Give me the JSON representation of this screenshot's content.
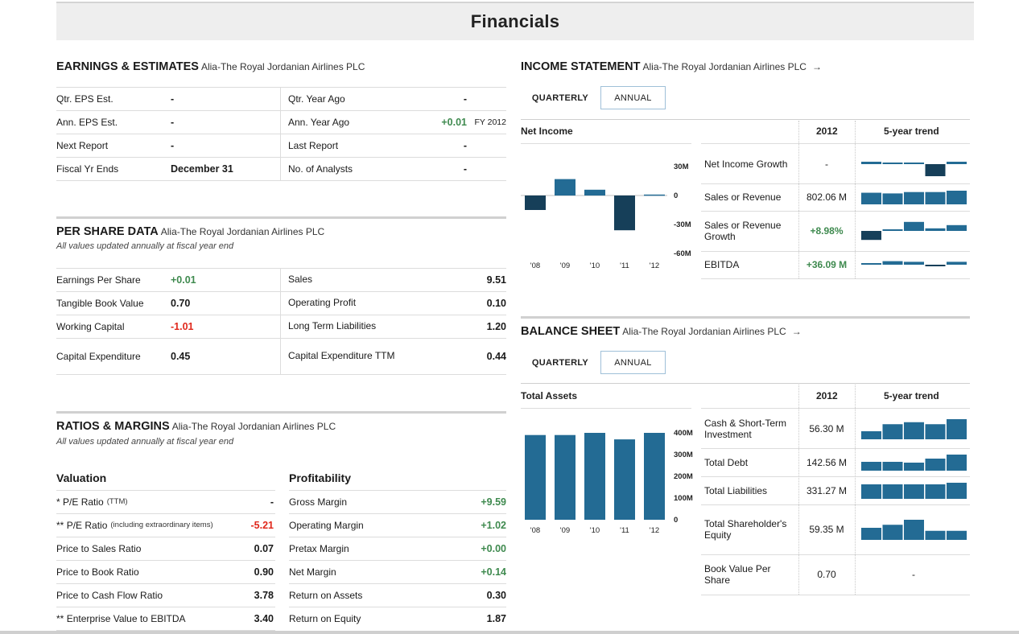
{
  "page_title": "Financials",
  "company": "Alia-The Royal Jordanian Airlines PLC",
  "arrow": "→",
  "earnings": {
    "heading": "EARNINGS & ESTIMATES",
    "left_rows": [
      {
        "label": "Qtr. EPS Est.",
        "value": "-"
      },
      {
        "label": "Ann. EPS Est.",
        "value": "-"
      },
      {
        "label": "Next Report",
        "value": "-"
      },
      {
        "label": "Fiscal Yr Ends",
        "value": "December 31"
      }
    ],
    "right_rows": [
      {
        "label": "Qtr. Year Ago",
        "value": "-",
        "note": ""
      },
      {
        "label": "Ann. Year Ago",
        "value": "+0.01",
        "note": "FY 2012"
      },
      {
        "label": "Last Report",
        "value": "-",
        "note": ""
      },
      {
        "label": "No. of Analysts",
        "value": "-",
        "note": ""
      }
    ]
  },
  "per_share": {
    "heading": "PER SHARE DATA",
    "subtitle": "All values updated annually at fiscal year end",
    "left_rows": [
      {
        "label": "Earnings Per Share",
        "value": "+0.01"
      },
      {
        "label": "Tangible Book Value",
        "value": "0.70"
      },
      {
        "label": "Working Capital",
        "value": "-1.01"
      },
      {
        "label": "Capital Expenditure",
        "value": "0.45"
      }
    ],
    "right_rows": [
      {
        "label": "Sales",
        "value": "9.51"
      },
      {
        "label": "Operating Profit",
        "value": "0.10"
      },
      {
        "label": "Long Term Liabilities",
        "value": "1.20"
      },
      {
        "label": "Capital Expenditure TTM",
        "value": "0.44"
      }
    ]
  },
  "ratios": {
    "heading": "RATIOS & MARGINS",
    "subtitle": "All values updated annually at fiscal year end",
    "valuation_heading": "Valuation",
    "profitability_heading": "Profitability",
    "valuation_rows": [
      {
        "prefix": "* ",
        "label": "P/E Ratio",
        "note": "(TTM)",
        "value": "-"
      },
      {
        "prefix": "** ",
        "label": "P/E Ratio",
        "note": "(including extraordinary items)",
        "value": "-5.21"
      },
      {
        "prefix": "",
        "label": "Price to Sales Ratio",
        "note": "",
        "value": "0.07"
      },
      {
        "prefix": "",
        "label": "Price to Book Ratio",
        "note": "",
        "value": "0.90"
      },
      {
        "prefix": "",
        "label": "Price to Cash Flow Ratio",
        "note": "",
        "value": "3.78"
      },
      {
        "prefix": "** ",
        "label": "Enterprise Value to EBITDA",
        "note": "",
        "value": "3.40"
      }
    ],
    "profitability_rows": [
      {
        "label": "Gross Margin",
        "value": "+9.59"
      },
      {
        "label": "Operating Margin",
        "value": "+1.02"
      },
      {
        "label": "Pretax Margin",
        "value": "+0.00"
      },
      {
        "label": "Net Margin",
        "value": "+0.14"
      },
      {
        "label": "Return on Assets",
        "value": "0.30"
      },
      {
        "label": "Return on Equity",
        "value": "1.87"
      }
    ]
  },
  "income": {
    "heading": "INCOME STATEMENT",
    "tabs": [
      "QUARTERLY",
      "ANNUAL"
    ],
    "chart_title": "Net Income",
    "col_year": "2012",
    "col_trend": "5-year trend",
    "metrics": [
      {
        "name": "Net Income Growth",
        "value": "-",
        "color": "neutral"
      },
      {
        "name": "Sales or Revenue",
        "value": "802.06 M",
        "color": "neutral"
      },
      {
        "name": "Sales or Revenue Growth",
        "value": "+8.98%",
        "color": "positive"
      },
      {
        "name": "EBITDA",
        "value": "+36.09 M",
        "color": "positive"
      }
    ]
  },
  "balance": {
    "heading": "BALANCE SHEET",
    "tabs": [
      "QUARTERLY",
      "ANNUAL"
    ],
    "chart_title": "Total Assets",
    "col_year": "2012",
    "col_trend": "5-year trend",
    "metrics": [
      {
        "name": "Cash & Short-Term Investment",
        "value": "56.30 M"
      },
      {
        "name": "Total Debt",
        "value": "142.56 M"
      },
      {
        "name": "Total Liabilities",
        "value": "331.27 M"
      },
      {
        "name": "Total Shareholder's Equity",
        "value": "59.35 M"
      },
      {
        "name": "Book Value Per Share",
        "value": "0.70",
        "trend": "-"
      }
    ]
  },
  "colors": {
    "bar_blue": "#236b94",
    "bar_dark": "#163f59",
    "positive": "#3f8a4f",
    "negative": "#e0281c"
  },
  "chart_data": [
    {
      "type": "bar",
      "title": "Net Income",
      "categories": [
        "'08",
        "'09",
        "'10",
        "'11",
        "'12"
      ],
      "values": [
        -15,
        17,
        6,
        -36,
        1
      ],
      "units": "M",
      "ylim": [
        -60,
        30
      ],
      "yticks": [
        "30M",
        "0",
        "-30M",
        "-60M"
      ]
    },
    {
      "type": "bar",
      "title": "Total Assets",
      "categories": [
        "'08",
        "'09",
        "'10",
        "'11",
        "'12"
      ],
      "values": [
        390,
        390,
        400,
        370,
        400
      ],
      "units": "M",
      "ylim": [
        0,
        400
      ],
      "yticks": [
        "400M",
        "300M",
        "200M",
        "100M",
        "0"
      ]
    },
    {
      "type": "bar",
      "title": "Net Income Growth",
      "categories": [
        "'08",
        "'09",
        "'10",
        "'11",
        "'12"
      ],
      "values": [
        0.2,
        0.1,
        0,
        -1,
        0.2
      ]
    },
    {
      "type": "bar",
      "title": "Sales or Revenue",
      "categories": [
        "'08",
        "'09",
        "'10",
        "'11",
        "'12"
      ],
      "values": [
        0.85,
        0.8,
        0.9,
        0.9,
        1
      ]
    },
    {
      "type": "bar",
      "title": "Sales or Revenue Growth",
      "categories": [
        "'08",
        "'09",
        "'10",
        "'11",
        "'12"
      ],
      "values": [
        -0.7,
        0,
        0.7,
        0.2,
        0.45
      ]
    },
    {
      "type": "bar",
      "title": "EBITDA",
      "categories": [
        "'08",
        "'09",
        "'10",
        "'11",
        "'12"
      ],
      "values": [
        0.2,
        0.55,
        0.45,
        -0.25,
        0.45
      ]
    },
    {
      "type": "bar",
      "title": "Cash & Short-Term Investment",
      "categories": [
        "'08",
        "'09",
        "'10",
        "'11",
        "'12"
      ],
      "values": [
        0.4,
        0.75,
        0.85,
        0.75,
        1
      ]
    },
    {
      "type": "bar",
      "title": "Total Debt",
      "categories": [
        "'08",
        "'09",
        "'10",
        "'11",
        "'12"
      ],
      "values": [
        0.55,
        0.55,
        0.5,
        0.75,
        1
      ]
    },
    {
      "type": "bar",
      "title": "Total Liabilities",
      "categories": [
        "'08",
        "'09",
        "'10",
        "'11",
        "'12"
      ],
      "values": [
        0.9,
        0.9,
        0.9,
        0.9,
        1
      ]
    },
    {
      "type": "bar",
      "title": "Total Shareholder's Equity",
      "categories": [
        "'08",
        "'09",
        "'10",
        "'11",
        "'12"
      ],
      "values": [
        0.6,
        0.75,
        1,
        0.45,
        0.45
      ]
    }
  ]
}
